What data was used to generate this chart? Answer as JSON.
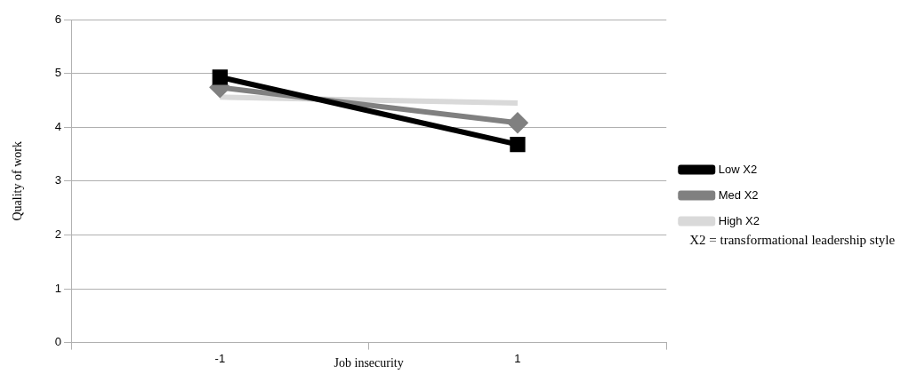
{
  "chart_data": {
    "type": "line",
    "xlabel": "Job insecurity",
    "ylabel": "Quality of work",
    "categories": [
      "-1",
      "1"
    ],
    "series": [
      {
        "name": "Low X2",
        "color": "#000000",
        "values": [
          4.93,
          3.68
        ],
        "marker": "square"
      },
      {
        "name": "Med X2",
        "color": "#808080",
        "values": [
          4.74,
          4.08
        ],
        "marker": "diamond"
      },
      {
        "name": "High X2",
        "color": "#d9d9d9",
        "values": [
          4.56,
          4.45
        ],
        "marker": "none"
      }
    ],
    "ylim": [
      0,
      6
    ],
    "yticks": [
      0,
      1,
      2,
      3,
      4,
      5,
      6
    ],
    "grid": "y",
    "legend": "right",
    "annotations": [
      "X2 = transformational leadership style"
    ]
  }
}
